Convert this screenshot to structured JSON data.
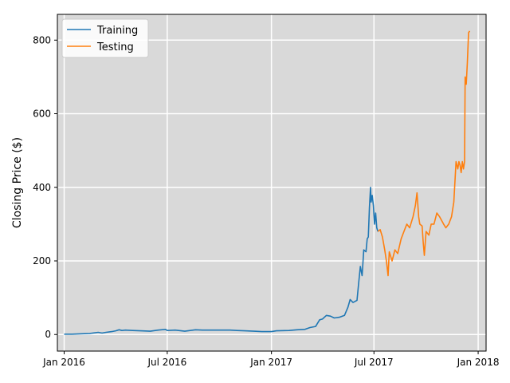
{
  "chart_data": {
    "type": "line",
    "title": "",
    "xlabel": "",
    "ylabel": "Closing Price ($)",
    "xlim": [
      "2015-12-20",
      "2018-01-15"
    ],
    "ylim": [
      -45,
      870
    ],
    "grid": true,
    "legend_position": "top-left",
    "x_ticks": [
      {
        "date": "2016-01-01",
        "label": "Jan 2016"
      },
      {
        "date": "2016-07-01",
        "label": "Jul 2016"
      },
      {
        "date": "2017-01-01",
        "label": "Jan 2017"
      },
      {
        "date": "2017-07-01",
        "label": "Jul 2017"
      },
      {
        "date": "2018-01-01",
        "label": "Jan 2018"
      }
    ],
    "y_ticks": [
      {
        "value": 0,
        "label": "0"
      },
      {
        "value": 200,
        "label": "200"
      },
      {
        "value": 400,
        "label": "400"
      },
      {
        "value": 600,
        "label": "600"
      },
      {
        "value": 800,
        "label": "800"
      }
    ],
    "series": [
      {
        "name": "Training",
        "color": "#1f77b4",
        "points": [
          [
            "2016-01-01",
            1
          ],
          [
            "2016-01-15",
            1
          ],
          [
            "2016-02-01",
            2
          ],
          [
            "2016-02-15",
            3
          ],
          [
            "2016-03-01",
            6
          ],
          [
            "2016-03-08",
            4
          ],
          [
            "2016-03-15",
            6
          ],
          [
            "2016-03-25",
            8
          ],
          [
            "2016-04-01",
            10
          ],
          [
            "2016-04-07",
            13
          ],
          [
            "2016-04-12",
            11
          ],
          [
            "2016-04-18",
            12
          ],
          [
            "2016-05-01",
            11
          ],
          [
            "2016-05-15",
            10
          ],
          [
            "2016-06-01",
            9
          ],
          [
            "2016-06-15",
            12
          ],
          [
            "2016-06-28",
            14
          ],
          [
            "2016-07-01",
            11
          ],
          [
            "2016-07-15",
            12
          ],
          [
            "2016-08-01",
            9
          ],
          [
            "2016-08-20",
            13
          ],
          [
            "2016-09-01",
            12
          ],
          [
            "2016-10-01",
            12
          ],
          [
            "2016-10-20",
            12
          ],
          [
            "2016-11-01",
            11
          ],
          [
            "2016-11-15",
            10
          ],
          [
            "2016-12-01",
            9
          ],
          [
            "2016-12-15",
            8
          ],
          [
            "2017-01-01",
            8
          ],
          [
            "2017-01-10",
            10
          ],
          [
            "2017-02-01",
            11
          ],
          [
            "2017-02-15",
            13
          ],
          [
            "2017-03-01",
            14
          ],
          [
            "2017-03-10",
            19
          ],
          [
            "2017-03-20",
            22
          ],
          [
            "2017-03-27",
            40
          ],
          [
            "2017-04-01",
            42
          ],
          [
            "2017-04-08",
            52
          ],
          [
            "2017-04-15",
            50
          ],
          [
            "2017-04-22",
            45
          ],
          [
            "2017-05-01",
            47
          ],
          [
            "2017-05-10",
            52
          ],
          [
            "2017-05-16",
            74
          ],
          [
            "2017-05-20",
            95
          ],
          [
            "2017-05-25",
            87
          ],
          [
            "2017-06-01",
            93
          ],
          [
            "2017-06-04",
            140
          ],
          [
            "2017-06-07",
            185
          ],
          [
            "2017-06-10",
            160
          ],
          [
            "2017-06-13",
            230
          ],
          [
            "2017-06-17",
            225
          ],
          [
            "2017-06-19",
            260
          ],
          [
            "2017-06-21",
            265
          ],
          [
            "2017-06-23",
            345
          ],
          [
            "2017-06-25",
            400
          ],
          [
            "2017-06-26",
            360
          ],
          [
            "2017-06-28",
            378
          ],
          [
            "2017-06-30",
            350
          ],
          [
            "2017-07-02",
            300
          ],
          [
            "2017-07-04",
            330
          ],
          [
            "2017-07-06",
            290
          ],
          [
            "2017-07-08",
            280
          ]
        ]
      },
      {
        "name": "Testing",
        "color": "#ff7f0e",
        "points": [
          [
            "2017-07-08",
            280
          ],
          [
            "2017-07-12",
            285
          ],
          [
            "2017-07-16",
            265
          ],
          [
            "2017-07-20",
            230
          ],
          [
            "2017-07-23",
            200
          ],
          [
            "2017-07-26",
            160
          ],
          [
            "2017-07-28",
            225
          ],
          [
            "2017-08-02",
            200
          ],
          [
            "2017-08-07",
            230
          ],
          [
            "2017-08-12",
            220
          ],
          [
            "2017-08-18",
            260
          ],
          [
            "2017-08-23",
            280
          ],
          [
            "2017-08-28",
            300
          ],
          [
            "2017-09-02",
            290
          ],
          [
            "2017-09-08",
            320
          ],
          [
            "2017-09-12",
            350
          ],
          [
            "2017-09-15",
            385
          ],
          [
            "2017-09-18",
            320
          ],
          [
            "2017-09-20",
            300
          ],
          [
            "2017-09-24",
            295
          ],
          [
            "2017-09-26",
            250
          ],
          [
            "2017-09-28",
            215
          ],
          [
            "2017-10-01",
            280
          ],
          [
            "2017-10-06",
            270
          ],
          [
            "2017-10-10",
            300
          ],
          [
            "2017-10-15",
            300
          ],
          [
            "2017-10-20",
            330
          ],
          [
            "2017-10-25",
            320
          ],
          [
            "2017-11-01",
            300
          ],
          [
            "2017-11-05",
            290
          ],
          [
            "2017-11-10",
            300
          ],
          [
            "2017-11-15",
            320
          ],
          [
            "2017-11-19",
            360
          ],
          [
            "2017-11-23",
            470
          ],
          [
            "2017-11-26",
            450
          ],
          [
            "2017-11-28",
            470
          ],
          [
            "2017-11-30",
            460
          ],
          [
            "2017-12-02",
            440
          ],
          [
            "2017-12-04",
            470
          ],
          [
            "2017-12-06",
            450
          ],
          [
            "2017-12-08",
            470
          ],
          [
            "2017-12-09",
            700
          ],
          [
            "2017-12-11",
            680
          ],
          [
            "2017-12-13",
            740
          ],
          [
            "2017-12-15",
            820
          ],
          [
            "2017-12-17",
            825
          ]
        ]
      }
    ]
  }
}
